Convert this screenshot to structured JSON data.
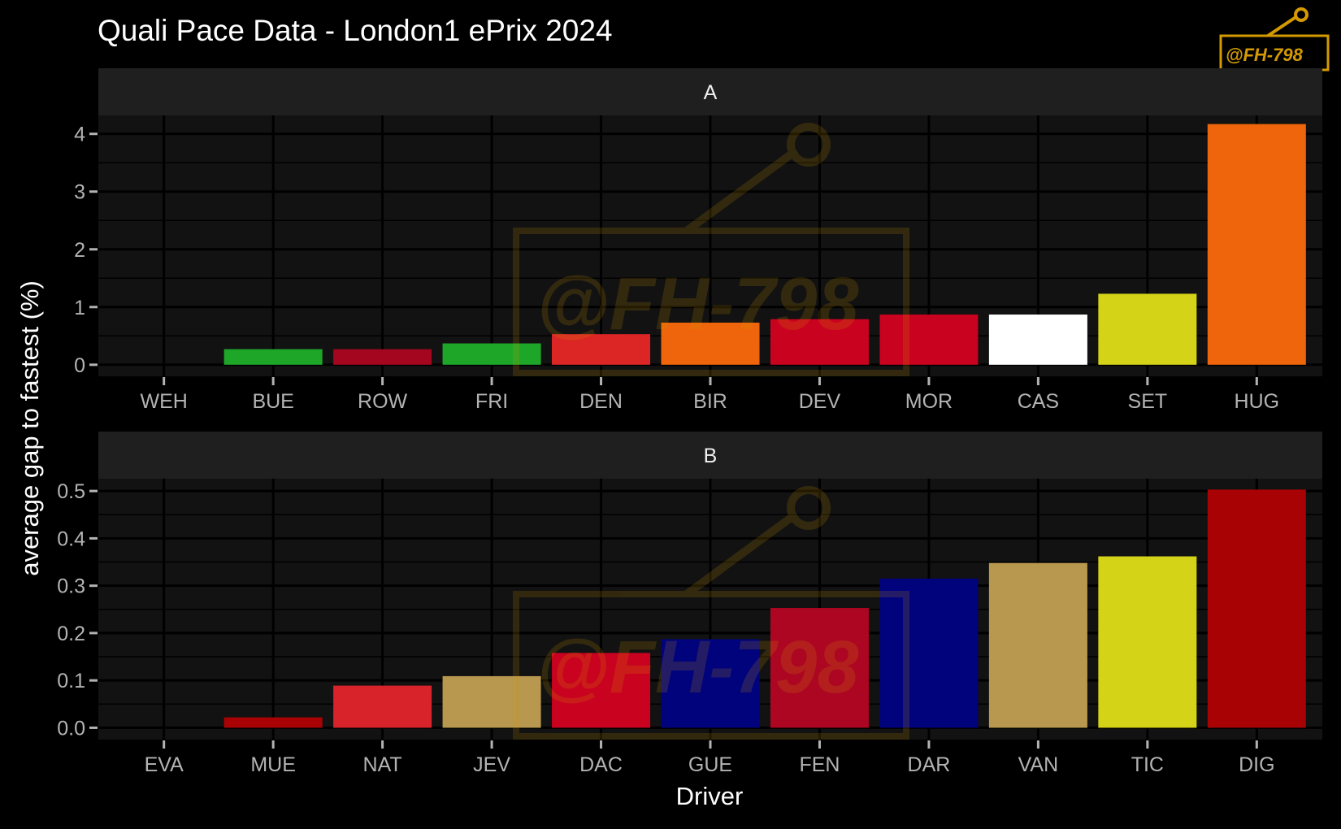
{
  "title": "Quali Pace Data - London1 ePrix 2024",
  "watermark_text": "@FH-798",
  "watermark_color": "#d49a00",
  "colors": {
    "background": "#000000",
    "panel": "#121212",
    "strip": "#1f1f1f",
    "grid": "#000000",
    "tick_text": "#b3b3b3"
  },
  "chart_data": {
    "type": "bar",
    "xlabel": "Driver",
    "ylabel": "average gap to fastest (%)",
    "panels": [
      {
        "label": "A",
        "categories": [
          "WEH",
          "BUE",
          "ROW",
          "FRI",
          "DEN",
          "BIR",
          "DEV",
          "MOR",
          "CAS",
          "SET",
          "HUG"
        ],
        "values": [
          0.0,
          0.27,
          0.27,
          0.37,
          0.53,
          0.73,
          0.79,
          0.87,
          0.87,
          1.23,
          4.17
        ],
        "bar_colors": [
          "#ffffff",
          "#1ea628",
          "#a3061e",
          "#1ea628",
          "#dc2626",
          "#ee650b",
          "#c8021f",
          "#c8021f",
          "#ffffff",
          "#d4d317",
          "#ee650b"
        ],
        "ylim": [
          -0.2,
          4.32
        ],
        "yticks": [
          0,
          1,
          2,
          3,
          4
        ],
        "ytick_labels": [
          "0",
          "1",
          "2",
          "3",
          "4"
        ]
      },
      {
        "label": "B",
        "categories": [
          "EVA",
          "MUE",
          "NAT",
          "JEV",
          "DAC",
          "GUE",
          "FEN",
          "DAR",
          "VAN",
          "TIC",
          "DIG"
        ],
        "values": [
          0.0,
          0.022,
          0.089,
          0.109,
          0.158,
          0.187,
          0.253,
          0.315,
          0.348,
          0.362,
          0.503
        ],
        "bar_colors": [
          "#ffffff",
          "#a80204",
          "#d8232a",
          "#b8974f",
          "#c8021f",
          "#01037c",
          "#ac0622",
          "#01037c",
          "#b8974f",
          "#d4d317",
          "#a80204"
        ],
        "ylim": [
          -0.025,
          0.526
        ],
        "yticks": [
          0.0,
          0.1,
          0.2,
          0.3,
          0.4,
          0.5
        ],
        "ytick_labels": [
          "0.0",
          "0.1",
          "0.2",
          "0.3",
          "0.4",
          "0.5"
        ]
      }
    ]
  }
}
